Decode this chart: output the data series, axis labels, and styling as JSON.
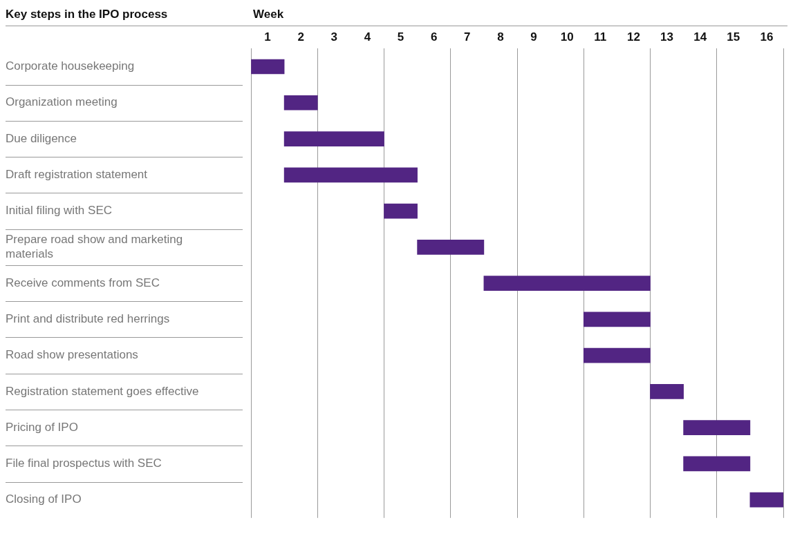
{
  "chart_data": {
    "type": "bar",
    "orientation": "horizontal",
    "title": "Key steps in the IPO process",
    "xlabel": "Week",
    "categories": [
      "Corporate housekeeping",
      "Organization meeting",
      "Due diligence",
      "Draft registration statement",
      "Initial filing with SEC",
      "Prepare road show and marketing materials",
      "Receive comments from SEC",
      "Print and distribute red herrings",
      "Road show presentations",
      "Registration statement goes effective",
      "Pricing of IPO",
      "File final prospectus with SEC",
      "Closing of IPO"
    ],
    "base": [
      0,
      1,
      1,
      1,
      4,
      5,
      7,
      10,
      10,
      12,
      13,
      13,
      15
    ],
    "values": [
      1,
      1,
      3,
      4,
      1,
      2,
      5,
      2,
      2,
      1,
      2,
      2,
      1
    ],
    "color": "#522583",
    "xlim": [
      0,
      16
    ],
    "xticks": [
      {
        "value": 0,
        "label": null
      },
      {
        "value": 0.5,
        "label": "1"
      },
      {
        "value": 1.5,
        "label": "2"
      },
      {
        "value": 2,
        "label": null
      },
      {
        "value": 2.5,
        "label": "3"
      },
      {
        "value": 3.5,
        "label": "4"
      },
      {
        "value": 4,
        "label": null
      },
      {
        "value": 4.5,
        "label": "5"
      },
      {
        "value": 5.5,
        "label": "6"
      },
      {
        "value": 6,
        "label": null
      },
      {
        "value": 6.5,
        "label": "7"
      },
      {
        "value": 7.5,
        "label": "8"
      },
      {
        "value": 8,
        "label": null
      },
      {
        "value": 8.5,
        "label": "9"
      },
      {
        "value": 9.5,
        "label": "10"
      },
      {
        "value": 10,
        "label": null
      },
      {
        "value": 10.5,
        "label": "11"
      },
      {
        "value": 11.5,
        "label": "12"
      },
      {
        "value": 12,
        "label": null
      },
      {
        "value": 12.5,
        "label": "13"
      },
      {
        "value": 13.5,
        "label": "14"
      },
      {
        "value": 14,
        "label": null
      },
      {
        "value": 14.5,
        "label": "15"
      },
      {
        "value": 15.5,
        "label": "16"
      },
      {
        "value": 16,
        "label": null
      }
    ],
    "grid": "x",
    "legend": false
  }
}
